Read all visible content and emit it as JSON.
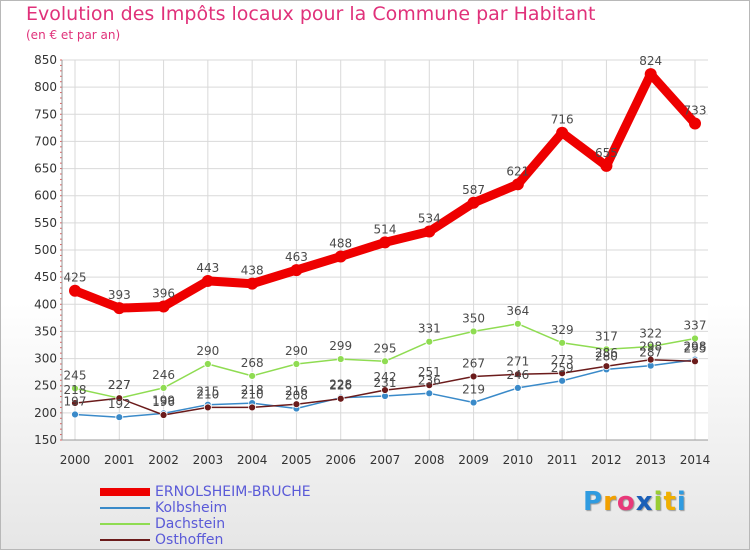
{
  "chart_data": {
    "type": "line",
    "title": "Evolution des Impôts locaux pour la Commune par Habitant",
    "subtitle": "(en € et par an)",
    "xlabel": "",
    "ylabel": "",
    "ylim": [
      150,
      850
    ],
    "yticks": [
      150,
      200,
      250,
      300,
      350,
      400,
      450,
      500,
      550,
      600,
      650,
      700,
      750,
      800,
      850
    ],
    "categories": [
      "2000",
      "2001",
      "2002",
      "2003",
      "2004",
      "2005",
      "2006",
      "2007",
      "2008",
      "2009",
      "2010",
      "2011",
      "2012",
      "2013",
      "2014"
    ],
    "grid": true,
    "legend_position": "bottom-left",
    "series": [
      {
        "name": "ERNOLSHEIM-BRUCHE",
        "color": "#ee0000",
        "labels": true,
        "values": [
          425,
          393,
          396,
          443,
          438,
          463,
          488,
          514,
          534,
          587,
          621,
          716,
          655,
          824,
          733
        ]
      },
      {
        "name": "Kolbsheim",
        "color": "#3a8ac9",
        "labels": true,
        "values": [
          197,
          192,
          199,
          215,
          218,
          208,
          228,
          231,
          236,
          219,
          246,
          259,
          280,
          287,
          298
        ]
      },
      {
        "name": "Dachstein",
        "color": "#8fdc52",
        "labels": true,
        "values": [
          245,
          227,
          246,
          290,
          268,
          290,
          299,
          295,
          331,
          350,
          364,
          329,
          317,
          322,
          337
        ]
      },
      {
        "name": "Osthoffen",
        "color": "#6b1b1b",
        "labels": true,
        "values": [
          218,
          227,
          196,
          210,
          210,
          216,
          226,
          242,
          251,
          267,
          271,
          273,
          286,
          298,
          295
        ]
      }
    ]
  },
  "logo": {
    "text": "Proxiti",
    "letters": [
      "P",
      "r",
      "o",
      "x",
      "i",
      "t",
      "i"
    ],
    "colors": [
      "#2f9be0",
      "#f2a000",
      "#e8397a",
      "#1a5fb8",
      "#9acd32",
      "#f0b000",
      "#2f9be0"
    ]
  }
}
